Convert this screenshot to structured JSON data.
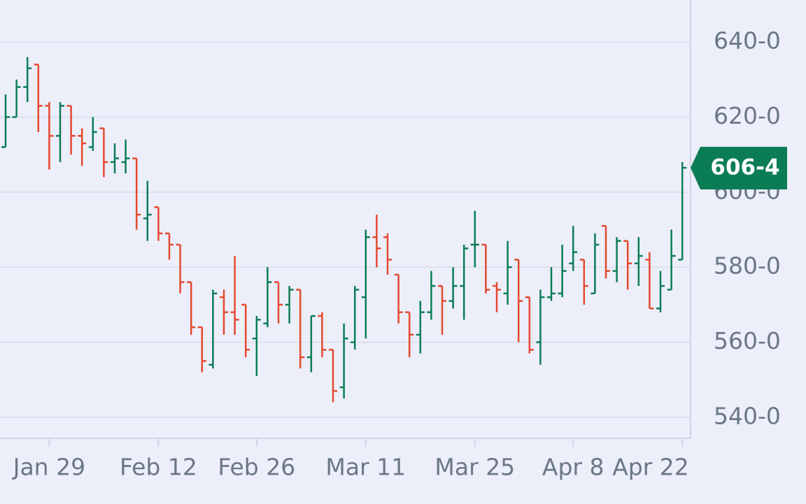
{
  "chart_data": {
    "type": "ohlc",
    "categories": [
      null,
      null,
      null,
      null,
      "Jan 29",
      null,
      null,
      null,
      null,
      null,
      null,
      null,
      null,
      null,
      "Feb 12",
      null,
      null,
      null,
      null,
      null,
      null,
      null,
      null,
      "Feb 26",
      null,
      null,
      null,
      null,
      null,
      null,
      null,
      null,
      null,
      "Mar 11",
      null,
      null,
      null,
      null,
      null,
      null,
      null,
      null,
      null,
      "Mar 25",
      null,
      null,
      null,
      null,
      null,
      null,
      null,
      null,
      "Apr 8",
      null,
      null,
      null,
      null,
      null,
      null,
      null,
      null,
      null,
      "Apr 22"
    ],
    "open": [
      612,
      620,
      628,
      634,
      623,
      615,
      623,
      615,
      612,
      617,
      608,
      608,
      609,
      593,
      596,
      589,
      586,
      576,
      564,
      554,
      572,
      568,
      570,
      561,
      565,
      576,
      570,
      574,
      556,
      567,
      558,
      548,
      560,
      572,
      588,
      588,
      578,
      568,
      562,
      568,
      575,
      571,
      575,
      586,
      586,
      575,
      573,
      582,
      572,
      560,
      572,
      573,
      581,
      582,
      573,
      591,
      579,
      587,
      581,
      582,
      569,
      574,
      582
    ],
    "high": [
      626,
      630,
      636,
      634,
      624,
      624,
      623,
      617,
      620,
      617,
      613,
      614,
      609,
      603,
      596,
      589,
      586,
      576,
      564,
      574,
      574,
      583,
      570,
      567,
      580,
      576,
      575,
      574,
      567,
      568,
      558,
      565,
      575,
      590,
      594,
      589,
      578,
      568,
      571,
      579,
      575,
      580,
      586,
      595,
      586,
      576,
      587,
      582,
      572,
      574,
      580,
      586,
      591,
      582,
      589,
      591,
      588,
      587,
      588,
      584,
      579,
      590,
      608
    ],
    "low": [
      612,
      620,
      624,
      616,
      606,
      608,
      610,
      607,
      611,
      604,
      605,
      605,
      590,
      587,
      587,
      582,
      573,
      562,
      552,
      553,
      562,
      562,
      556,
      551,
      564,
      565,
      565,
      553,
      552,
      556,
      544,
      545,
      558,
      561,
      580,
      578,
      565,
      556,
      557,
      566,
      562,
      569,
      566,
      580,
      573,
      568,
      570,
      560,
      557,
      554,
      571,
      572,
      579,
      570,
      573,
      577,
      576,
      574,
      575,
      569,
      568,
      574,
      582
    ],
    "close": [
      620,
      628,
      633,
      623,
      615,
      623,
      615,
      613,
      616,
      608,
      609,
      609,
      594,
      594,
      589,
      586,
      576,
      564,
      555,
      573,
      568,
      566,
      558,
      566,
      576,
      570,
      574,
      556,
      567,
      558,
      547,
      561,
      574,
      588,
      585,
      582,
      568,
      562,
      568,
      575,
      571,
      575,
      585,
      586,
      574,
      574,
      580,
      571,
      558,
      572,
      573,
      579,
      584,
      575,
      586,
      579,
      587,
      581,
      583,
      569,
      575,
      583,
      606.5
    ],
    "up_color": "#0b7d55",
    "down_color": "#e5482f",
    "last_price": {
      "value": 606.5,
      "label": "606-4"
    },
    "ylim": [
      534.4,
      651.2
    ],
    "yticks": [
      {
        "value": 540,
        "label": "540-0"
      },
      {
        "value": 560,
        "label": "560-0"
      },
      {
        "value": 580,
        "label": "580-0"
      },
      {
        "value": 600,
        "label": "600-0"
      },
      {
        "value": 620,
        "label": "620-0"
      },
      {
        "value": 640,
        "label": "640-0"
      }
    ],
    "grid": true
  }
}
